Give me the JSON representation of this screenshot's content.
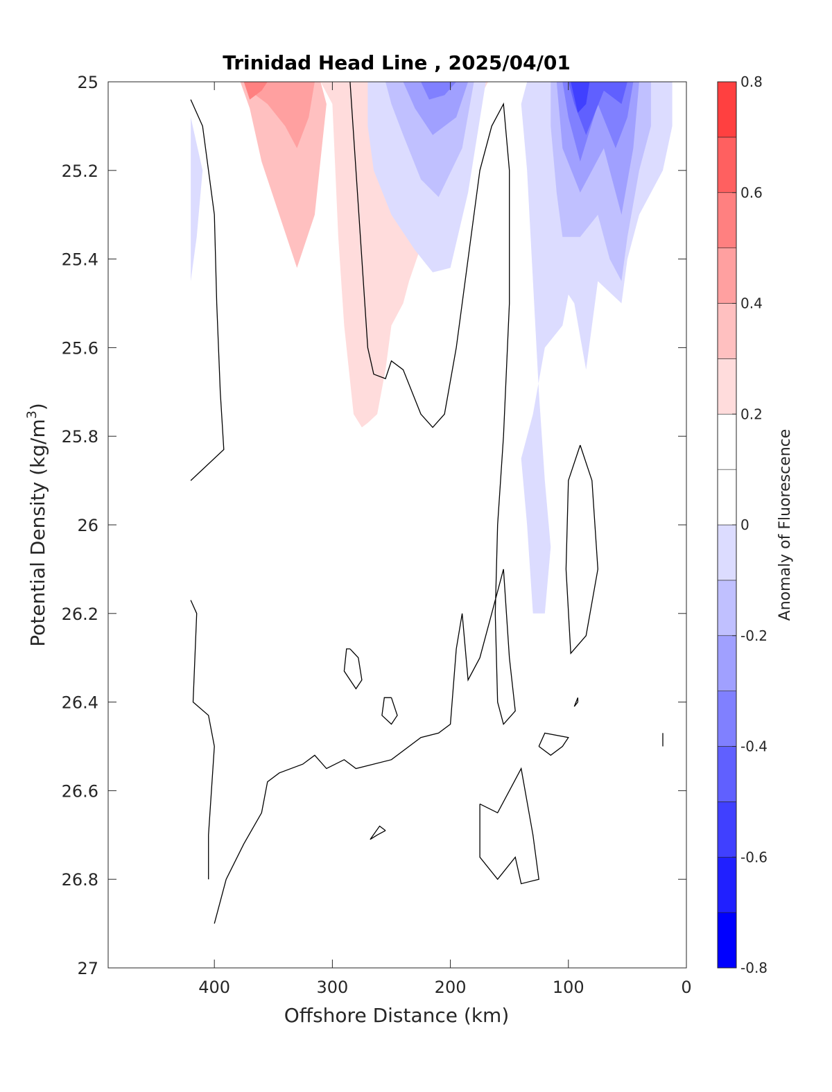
{
  "chart_data": {
    "type": "contour",
    "title": "Trinidad Head Line , 2025/04/01",
    "xlabel": "Offshore Distance (km)",
    "ylabel": "Potential Density (kg/m",
    "ylabel_superscript": "3",
    "ylabel_suffix": ")",
    "xlim": [
      490,
      0
    ],
    "ylim": [
      25,
      27
    ],
    "x_reversed": true,
    "y_reversed": true,
    "xticks": [
      400,
      300,
      200,
      100,
      0
    ],
    "yticks": [
      25,
      25.2,
      25.4,
      25.6,
      25.8,
      26,
      26.2,
      26.4,
      26.6,
      26.8,
      27
    ],
    "colorbar": {
      "label": "Anomaly of Fluorescence",
      "min": -0.8,
      "max": 0.8,
      "step": 0.1,
      "ticks": [
        0.8,
        0.6,
        0.4,
        0.2,
        0,
        -0.2,
        -0.4,
        -0.6,
        -0.8
      ],
      "colors": {
        "-0.8": "#0000ff",
        "-0.7": "#2020ff",
        "-0.6": "#4040ff",
        "-0.5": "#6060ff",
        "-0.4": "#8080ff",
        "-0.3": "#a0a0ff",
        "-0.2": "#c0c0ff",
        "-0.1": "#dcdcff",
        "0.0": "#ffffff",
        "0.1": "#ffffff",
        "0.2": "#ffdcdc",
        "0.3": "#ffc0c0",
        "0.4": "#ffa0a0",
        "0.5": "#ff8080",
        "0.6": "#ff6060",
        "0.7": "#ff4040"
      }
    },
    "filled_regions": [
      {
        "name": "positive-anomaly-0.1",
        "level": 0.1,
        "color": "#ffdcdc",
        "points": [
          [
            420,
            25.0
          ],
          [
            310,
            25.0
          ],
          [
            300,
            25.05
          ],
          [
            295,
            25.35
          ],
          [
            290,
            25.55
          ],
          [
            282,
            25.75
          ],
          [
            275,
            25.78
          ],
          [
            270,
            25.77
          ],
          [
            262,
            25.75
          ],
          [
            255,
            25.65
          ],
          [
            250,
            25.55
          ],
          [
            240,
            25.5
          ],
          [
            235,
            25.45
          ],
          [
            226,
            25.38
          ],
          [
            222,
            25.35
          ],
          [
            215,
            25.28
          ],
          [
            208,
            25.25
          ],
          [
            200,
            25.2
          ],
          [
            194,
            25.12
          ],
          [
            185,
            25.07
          ],
          [
            176,
            25.04
          ],
          [
            172,
            25.02
          ],
          [
            168,
            25.0
          ]
        ]
      },
      {
        "name": "positive-anomaly-0.2",
        "level": 0.2,
        "color": "#ffc0c0",
        "points": [
          [
            388,
            25.0
          ],
          [
            310,
            25.0
          ],
          [
            305,
            25.05
          ],
          [
            315,
            25.3
          ],
          [
            330,
            25.42
          ],
          [
            345,
            25.3
          ],
          [
            360,
            25.18
          ],
          [
            370,
            25.06
          ],
          [
            378,
            25.0
          ]
        ]
      },
      {
        "name": "positive-anomaly-0.3",
        "level": 0.3,
        "color": "#ffa0a0",
        "points": [
          [
            375,
            25.0
          ],
          [
            315,
            25.0
          ],
          [
            320,
            25.08
          ],
          [
            330,
            25.15
          ],
          [
            340,
            25.1
          ],
          [
            355,
            25.05
          ],
          [
            365,
            25.03
          ]
        ]
      },
      {
        "name": "positive-anomaly-0.4",
        "level": 0.4,
        "color": "#ff8080",
        "points": [
          [
            375,
            25.0
          ],
          [
            355,
            25.0
          ],
          [
            360,
            25.02
          ],
          [
            370,
            25.04
          ]
        ]
      },
      {
        "name": "negative-anomaly-west",
        "level": -0.1,
        "color": "#dcdcff",
        "points": [
          [
            420,
            25.08
          ],
          [
            410,
            25.2
          ],
          [
            415,
            25.35
          ],
          [
            420,
            25.45
          ]
        ]
      },
      {
        "name": "negative-anomaly-mid",
        "level": -0.1,
        "color": "#dcdcff",
        "points": [
          [
            270,
            25.0
          ],
          [
            170,
            25.0
          ],
          [
            185,
            25.25
          ],
          [
            200,
            25.42
          ],
          [
            215,
            25.43
          ],
          [
            230,
            25.38
          ],
          [
            250,
            25.3
          ],
          [
            265,
            25.2
          ],
          [
            270,
            25.1
          ]
        ]
      },
      {
        "name": "negative-anomaly-mid-2",
        "level": -0.2,
        "color": "#c0c0ff",
        "points": [
          [
            255,
            25.0
          ],
          [
            180,
            25.0
          ],
          [
            190,
            25.15
          ],
          [
            210,
            25.26
          ],
          [
            225,
            25.22
          ],
          [
            240,
            25.12
          ],
          [
            250,
            25.05
          ]
        ]
      },
      {
        "name": "negative-anomaly-mid-3",
        "level": -0.3,
        "color": "#a0a0ff",
        "points": [
          [
            240,
            25.0
          ],
          [
            185,
            25.0
          ],
          [
            195,
            25.08
          ],
          [
            215,
            25.12
          ],
          [
            230,
            25.06
          ]
        ]
      },
      {
        "name": "negative-anomaly-mid-4",
        "level": -0.4,
        "color": "#8080ff",
        "points": [
          [
            225,
            25.0
          ],
          [
            195,
            25.0
          ],
          [
            205,
            25.03
          ],
          [
            218,
            25.04
          ]
        ]
      },
      {
        "name": "negative-anomaly-east",
        "level": -0.1,
        "color": "#dcdcff",
        "points": [
          [
            135,
            25.0
          ],
          [
            12,
            25.0
          ],
          [
            12,
            25.1
          ],
          [
            20,
            25.2
          ],
          [
            40,
            25.3
          ],
          [
            50,
            25.4
          ],
          [
            55,
            25.5
          ],
          [
            75,
            25.45
          ],
          [
            80,
            25.55
          ],
          [
            85,
            25.65
          ],
          [
            95,
            25.5
          ],
          [
            100,
            25.48
          ],
          [
            105,
            25.55
          ],
          [
            120,
            25.6
          ],
          [
            130,
            25.75
          ],
          [
            140,
            25.85
          ],
          [
            135,
            26.0
          ],
          [
            130,
            26.2
          ],
          [
            120,
            26.2
          ],
          [
            115,
            26.05
          ],
          [
            120,
            25.9
          ],
          [
            125,
            25.7
          ],
          [
            130,
            25.45
          ],
          [
            135,
            25.2
          ],
          [
            140,
            25.05
          ]
        ]
      },
      {
        "name": "negative-anomaly-east-2",
        "level": -0.2,
        "color": "#c0c0ff",
        "points": [
          [
            115,
            25.0
          ],
          [
            30,
            25.0
          ],
          [
            30,
            25.1
          ],
          [
            40,
            25.2
          ],
          [
            50,
            25.35
          ],
          [
            55,
            25.45
          ],
          [
            65,
            25.4
          ],
          [
            75,
            25.3
          ],
          [
            90,
            25.35
          ],
          [
            105,
            25.35
          ],
          [
            110,
            25.25
          ],
          [
            115,
            25.1
          ]
        ]
      },
      {
        "name": "negative-anomaly-east-3",
        "level": -0.3,
        "color": "#a0a0ff",
        "points": [
          [
            110,
            25.0
          ],
          [
            40,
            25.0
          ],
          [
            45,
            25.15
          ],
          [
            55,
            25.3
          ],
          [
            70,
            25.15
          ],
          [
            90,
            25.25
          ],
          [
            105,
            25.15
          ]
        ]
      },
      {
        "name": "negative-anomaly-east-4",
        "level": -0.4,
        "color": "#8080ff",
        "points": [
          [
            105,
            25.0
          ],
          [
            45,
            25.0
          ],
          [
            50,
            25.08
          ],
          [
            60,
            25.15
          ],
          [
            75,
            25.05
          ],
          [
            90,
            25.18
          ],
          [
            100,
            25.08
          ]
        ]
      },
      {
        "name": "negative-anomaly-east-5",
        "level": -0.5,
        "color": "#6060ff",
        "points": [
          [
            100,
            25.0
          ],
          [
            50,
            25.0
          ],
          [
            55,
            25.05
          ],
          [
            70,
            25.02
          ],
          [
            85,
            25.12
          ],
          [
            95,
            25.05
          ]
        ]
      },
      {
        "name": "negative-anomaly-east-6",
        "level": -0.6,
        "color": "#4040ff",
        "points": [
          [
            98,
            25.0
          ],
          [
            82,
            25.0
          ],
          [
            85,
            25.05
          ],
          [
            92,
            25.07
          ]
        ]
      }
    ],
    "zero_contours": [
      {
        "name": "zero-contour-west-upper",
        "points": [
          [
            420,
            25.04
          ],
          [
            410,
            25.1
          ],
          [
            405,
            25.2
          ],
          [
            400,
            25.3
          ],
          [
            398,
            25.5
          ],
          [
            395,
            25.7
          ],
          [
            392,
            25.83
          ],
          [
            420,
            25.9
          ]
        ]
      },
      {
        "name": "zero-contour-west-lower",
        "points": [
          [
            420,
            26.17
          ],
          [
            415,
            26.2
          ],
          [
            418,
            26.4
          ],
          [
            405,
            26.43
          ],
          [
            400,
            26.5
          ],
          [
            405,
            26.7
          ],
          [
            405,
            26.8
          ]
        ]
      },
      {
        "name": "zero-contour-mid-west",
        "points": [
          [
            285,
            25.0
          ],
          [
            280,
            25.2
          ],
          [
            275,
            25.4
          ],
          [
            270,
            25.6
          ],
          [
            265,
            25.66
          ],
          [
            255,
            25.67
          ],
          [
            250,
            25.63
          ],
          [
            240,
            25.65
          ],
          [
            225,
            25.75
          ],
          [
            215,
            25.78
          ],
          [
            205,
            25.75
          ],
          [
            195,
            25.6
          ],
          [
            185,
            25.4
          ],
          [
            175,
            25.2
          ],
          [
            165,
            25.1
          ],
          [
            155,
            25.05
          ],
          [
            150,
            25.2
          ],
          [
            150,
            25.5
          ],
          [
            155,
            25.8
          ],
          [
            160,
            26.0
          ],
          [
            162,
            26.2
          ],
          [
            160,
            26.4
          ],
          [
            155,
            26.45
          ],
          [
            145,
            26.42
          ],
          [
            150,
            26.3
          ],
          [
            155,
            26.1
          ],
          [
            165,
            26.2
          ],
          [
            175,
            26.3
          ],
          [
            185,
            26.35
          ],
          [
            190,
            26.2
          ],
          [
            195,
            26.28
          ],
          [
            200,
            26.45
          ],
          [
            210,
            26.47
          ],
          [
            225,
            26.48
          ],
          [
            250,
            26.53
          ],
          [
            280,
            26.55
          ],
          [
            290,
            26.53
          ],
          [
            305,
            26.55
          ],
          [
            315,
            26.52
          ],
          [
            325,
            26.54
          ],
          [
            345,
            26.56
          ],
          [
            355,
            26.58
          ],
          [
            360,
            26.65
          ],
          [
            375,
            26.72
          ],
          [
            390,
            26.8
          ],
          [
            400,
            26.9
          ]
        ]
      },
      {
        "name": "zero-contour-island-1",
        "points": [
          [
            285,
            26.28
          ],
          [
            278,
            26.3
          ],
          [
            275,
            26.35
          ],
          [
            280,
            26.37
          ],
          [
            290,
            26.33
          ],
          [
            288,
            26.28
          ],
          [
            285,
            26.28
          ]
        ]
      },
      {
        "name": "zero-contour-island-2",
        "points": [
          [
            250,
            26.39
          ],
          [
            245,
            26.43
          ],
          [
            250,
            26.45
          ],
          [
            258,
            26.43
          ],
          [
            256,
            26.39
          ],
          [
            250,
            26.39
          ]
        ]
      },
      {
        "name": "zero-contour-island-3",
        "points": [
          [
            255,
            26.69
          ],
          [
            262,
            26.7
          ],
          [
            268,
            26.71
          ],
          [
            260,
            26.68
          ],
          [
            255,
            26.69
          ]
        ]
      },
      {
        "name": "zero-contour-island-east-oval",
        "points": [
          [
            90,
            25.82
          ],
          [
            80,
            25.9
          ],
          [
            75,
            26.1
          ],
          [
            85,
            26.25
          ],
          [
            98,
            26.29
          ],
          [
            102,
            26.1
          ],
          [
            100,
            25.9
          ],
          [
            90,
            25.82
          ]
        ]
      },
      {
        "name": "zero-contour-island-east-small",
        "points": [
          [
            125,
            26.5
          ],
          [
            115,
            26.52
          ],
          [
            105,
            26.5
          ],
          [
            100,
            26.48
          ],
          [
            120,
            26.47
          ],
          [
            125,
            26.5
          ]
        ]
      },
      {
        "name": "zero-contour-island-lower-right",
        "points": [
          [
            175,
            26.63
          ],
          [
            160,
            26.65
          ],
          [
            150,
            26.6
          ],
          [
            140,
            26.55
          ],
          [
            130,
            26.7
          ],
          [
            125,
            26.8
          ],
          [
            140,
            26.81
          ],
          [
            145,
            26.75
          ],
          [
            160,
            26.8
          ],
          [
            175,
            26.75
          ],
          [
            175,
            26.63
          ]
        ]
      },
      {
        "name": "zero-contour-tiny-1",
        "points": [
          [
            92,
            26.4
          ],
          [
            95,
            26.41
          ],
          [
            92,
            26.39
          ],
          [
            92,
            26.4
          ]
        ]
      },
      {
        "name": "zero-contour-tiny-2",
        "points": [
          [
            20,
            26.47
          ],
          [
            20,
            26.5
          ]
        ]
      }
    ]
  }
}
